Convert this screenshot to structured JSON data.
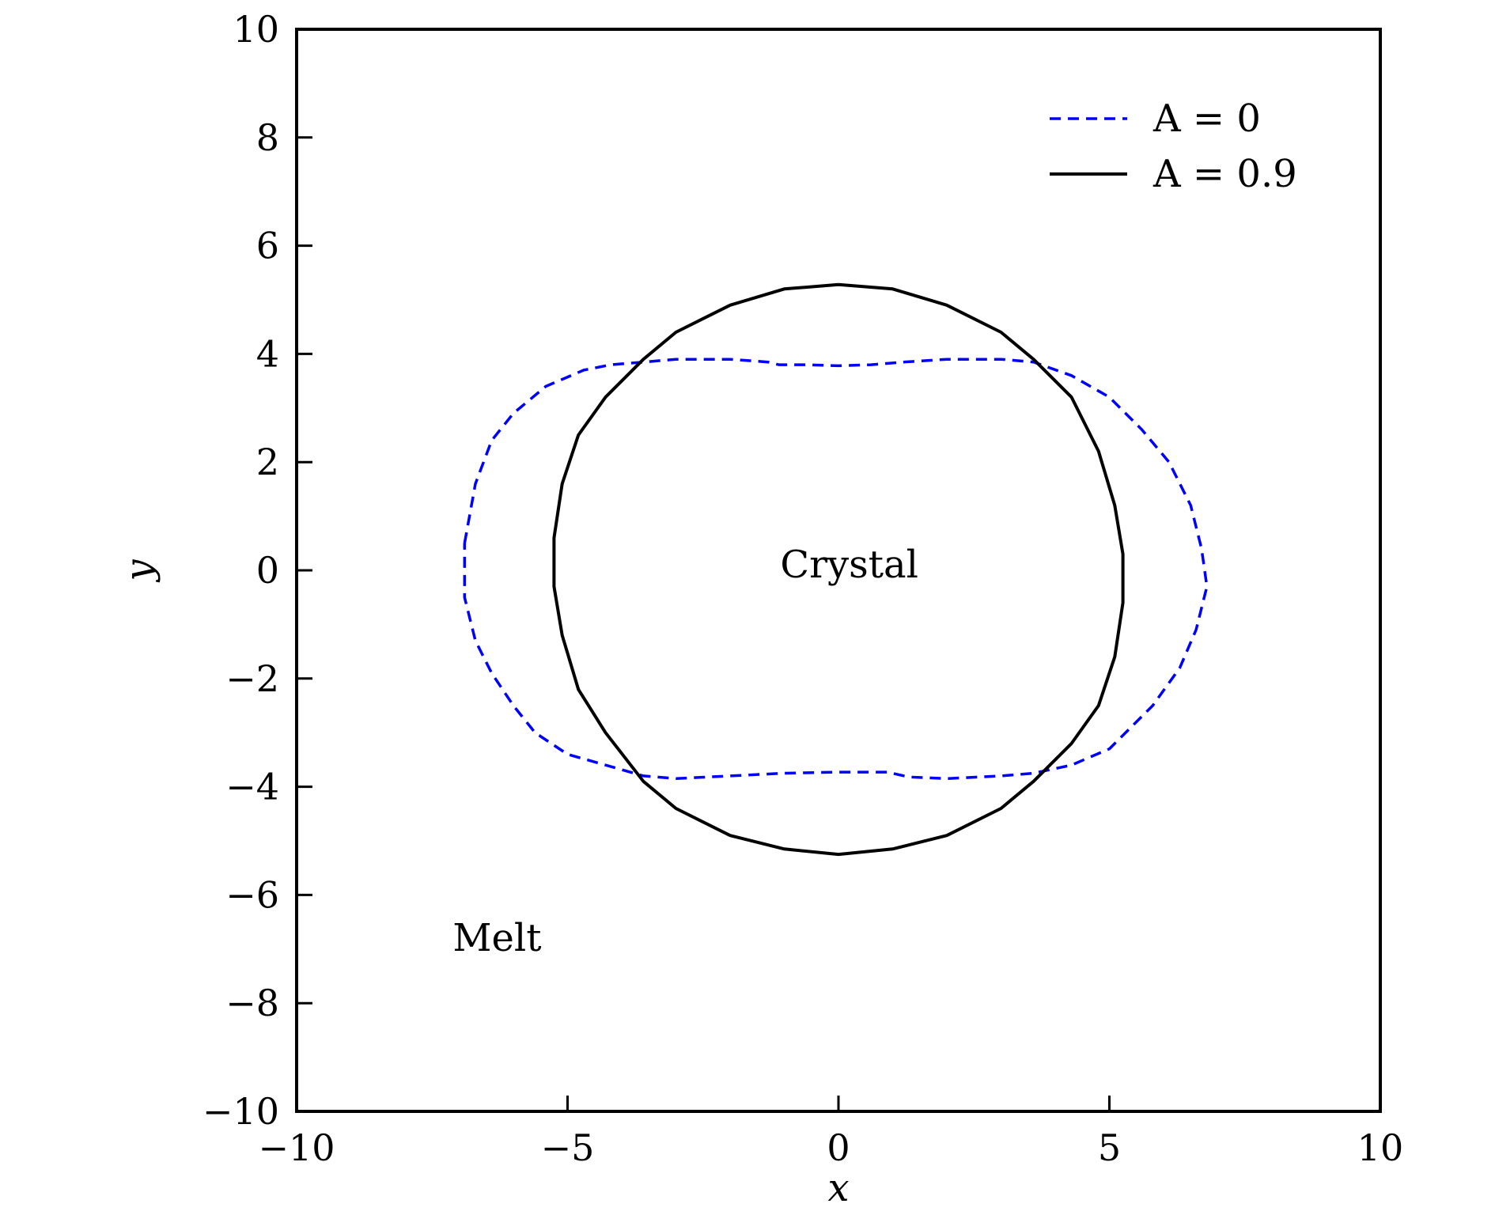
{
  "chart_data": {
    "type": "line",
    "title": "",
    "xlabel": "x",
    "ylabel": "y",
    "xlim": [
      -10,
      10
    ],
    "ylim": [
      -10,
      10
    ],
    "xticks": [
      -10,
      -5,
      0,
      5,
      10
    ],
    "yticks": [
      -10,
      -8,
      -6,
      -4,
      -2,
      0,
      2,
      4,
      6,
      8,
      10
    ],
    "xtick_labels": [
      "−10",
      "−5",
      "0",
      "5",
      "10"
    ],
    "ytick_labels": [
      "−10",
      "−8",
      "−6",
      "−4",
      "−2",
      "0",
      "2",
      "4",
      "6",
      "8",
      "10"
    ],
    "grid": false,
    "legend_position": "top-right",
    "series": [
      {
        "name": "A = 0",
        "color": "#0000ff",
        "style": "dashed",
        "x": [
          -6.9,
          -6.7,
          -6.4,
          -6.0,
          -5.4,
          -4.7,
          -4.2,
          -3.6,
          -3.0,
          -2.0,
          -1.3,
          -1.1,
          -0.6,
          0.0,
          0.6,
          1.2,
          2.0,
          3.0,
          3.6,
          4.3,
          5.0,
          5.6,
          6.1,
          6.5,
          6.7,
          6.8,
          6.6,
          6.3,
          5.8,
          5.0,
          4.3,
          3.6,
          3.0,
          2.0,
          1.3,
          0.9,
          0.0,
          -1.0,
          -2.0,
          -3.0,
          -3.6,
          -4.3,
          -5.0,
          -5.6,
          -6.0,
          -6.4,
          -6.7,
          -6.9,
          -6.9
        ],
        "y": [
          0.5,
          1.6,
          2.4,
          2.9,
          3.4,
          3.7,
          3.8,
          3.85,
          3.9,
          3.9,
          3.85,
          3.8,
          3.8,
          3.78,
          3.8,
          3.85,
          3.9,
          3.9,
          3.85,
          3.6,
          3.2,
          2.6,
          2.0,
          1.2,
          0.4,
          -0.3,
          -1.1,
          -1.8,
          -2.5,
          -3.3,
          -3.6,
          -3.75,
          -3.8,
          -3.85,
          -3.82,
          -3.73,
          -3.73,
          -3.75,
          -3.8,
          -3.85,
          -3.8,
          -3.6,
          -3.4,
          -3.0,
          -2.5,
          -1.9,
          -1.3,
          -0.5,
          0.5
        ]
      },
      {
        "name": "A = 0.9",
        "color": "#000000",
        "style": "solid",
        "x": [
          0.0,
          1.0,
          2.0,
          3.0,
          3.6,
          4.3,
          4.8,
          5.1,
          5.25,
          5.25,
          5.1,
          4.8,
          4.3,
          3.6,
          3.0,
          2.0,
          1.0,
          0.0,
          -1.0,
          -2.0,
          -3.0,
          -3.6,
          -4.3,
          -4.8,
          -5.1,
          -5.25,
          -5.25,
          -5.1,
          -4.8,
          -4.3,
          -3.6,
          -3.0,
          -2.0,
          -1.0,
          0.0
        ],
        "y": [
          5.28,
          5.2,
          4.9,
          4.4,
          3.9,
          3.2,
          2.2,
          1.2,
          0.3,
          -0.6,
          -1.6,
          -2.5,
          -3.2,
          -3.9,
          -4.4,
          -4.9,
          -5.15,
          -5.25,
          -5.15,
          -4.9,
          -4.4,
          -3.9,
          -3.0,
          -2.2,
          -1.2,
          -0.3,
          0.6,
          1.6,
          2.5,
          3.2,
          3.9,
          4.4,
          4.9,
          5.2,
          5.28
        ]
      }
    ],
    "annotations": [
      {
        "text": "Crystal",
        "x": 0.2,
        "y": 0.1
      },
      {
        "text": "Melt",
        "x": -6.3,
        "y": -6.8
      }
    ]
  }
}
